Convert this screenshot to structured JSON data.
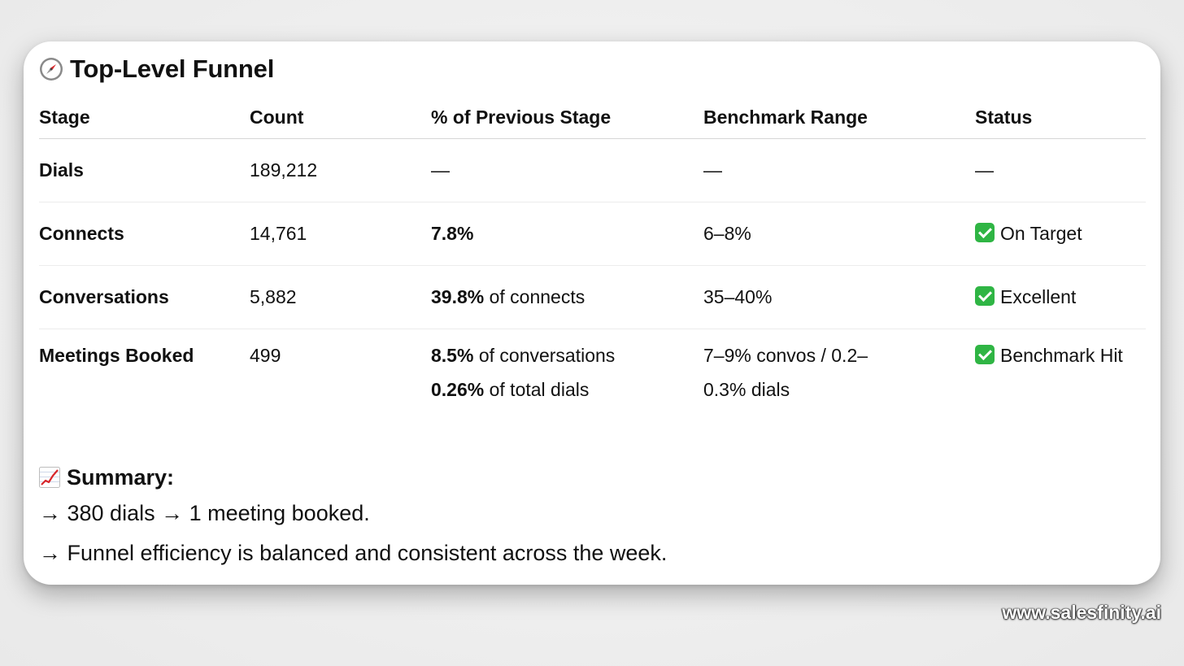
{
  "title": {
    "icon": "compass-icon",
    "text": "Top-Level Funnel"
  },
  "table": {
    "headers": [
      "Stage",
      "Count",
      "% of Previous Stage",
      "Benchmark Range",
      "Status"
    ],
    "rows": [
      {
        "stage": "Dials",
        "count": "189,212",
        "pct_bold": "—",
        "pct_rest": "",
        "benchmark": "—",
        "status_icon": "",
        "status": "—"
      },
      {
        "stage": "Connects",
        "count": "14,761",
        "pct_bold": "7.8%",
        "pct_rest": "",
        "benchmark": "6–8%",
        "status_icon": "check-icon",
        "status": "On Target"
      },
      {
        "stage": "Conversations",
        "count": "5,882",
        "pct_bold": "39.8%",
        "pct_rest": " of connects",
        "benchmark": "35–40%",
        "status_icon": "check-icon",
        "status": "Excellent"
      },
      {
        "stage": "Meetings Booked",
        "count": "499",
        "pct_lines": [
          {
            "bold": "8.5%",
            "rest": " of conversations"
          },
          {
            "bold": "0.26%",
            "rest": " of total dials"
          }
        ],
        "benchmark": "7–9% convos / 0.2–0.3% dials",
        "benchmark_lines": [
          "7–9% convos / 0.2–",
          "0.3% dials"
        ],
        "status_icon": "check-icon",
        "status": "Benchmark Hit"
      }
    ]
  },
  "summary": {
    "icon": "chart-increasing-icon",
    "title": "Summary:",
    "lines": [
      "→ 380 dials → 1 meeting booked.",
      "→ Funnel efficiency is balanced and consistent across the week."
    ]
  },
  "watermark": "www.salesfinity.ai",
  "colors": {
    "check_green": "#2fb544",
    "text": "#111111",
    "card": "#ffffff"
  }
}
